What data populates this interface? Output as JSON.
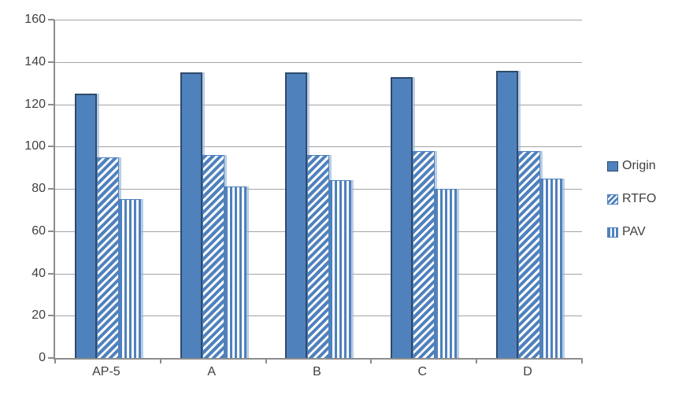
{
  "chart_data": {
    "type": "bar",
    "title": "",
    "xlabel": "",
    "ylabel": "",
    "categories": [
      "AP-5",
      "A",
      "B",
      "C",
      "D"
    ],
    "series": [
      {
        "name": "Origin",
        "pattern": "solid",
        "values": [
          125,
          135,
          135,
          133,
          136
        ]
      },
      {
        "name": "RTFO",
        "pattern": "diagonal-stripes",
        "values": [
          95,
          96,
          96,
          98,
          98
        ]
      },
      {
        "name": "PAV",
        "pattern": "vertical-stripes",
        "values": [
          75,
          81,
          84,
          80,
          85
        ]
      }
    ],
    "ylim": [
      0,
      160
    ],
    "yticks": [
      0,
      20,
      40,
      60,
      80,
      100,
      120,
      140,
      160
    ],
    "grid": "horizontal-only",
    "legend_position": "right",
    "colors": {
      "bar_fill": "#4f81bd",
      "bar_border": "#2e4a6b",
      "pattern_background": "#ffffff",
      "shadow": "#95b3d7",
      "gridline": "#a3a3a3",
      "axis": "#8c8c8c",
      "text": "#3f3f3f",
      "background": "#ffffff"
    }
  }
}
